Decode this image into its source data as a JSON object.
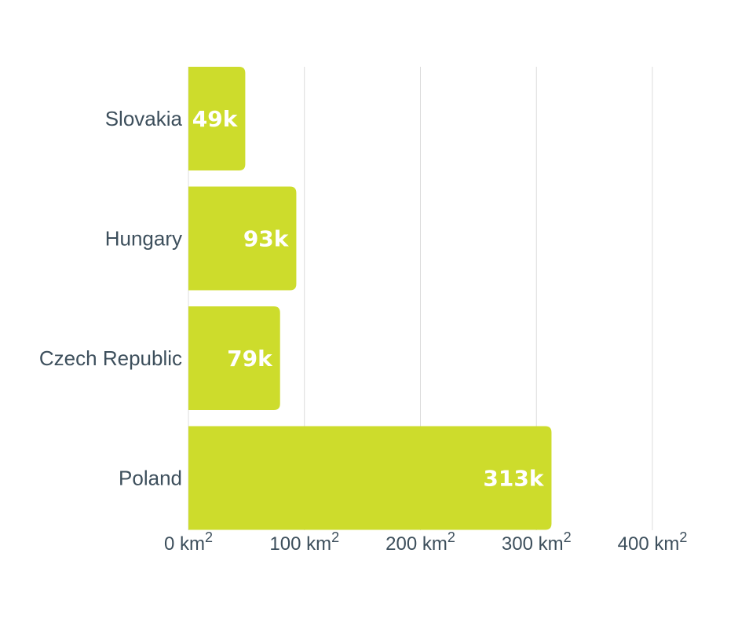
{
  "chart_data": {
    "type": "bar",
    "orientation": "horizontal",
    "categories": [
      "Slovakia",
      "Hungary",
      "Czech Republic",
      "Poland"
    ],
    "values": [
      49,
      93,
      79,
      313
    ],
    "value_labels": [
      "49k",
      "93k",
      "79k",
      "313k"
    ],
    "units": "thousand km²",
    "xlim": [
      0,
      400
    ],
    "x_ticks": [
      {
        "value": 0,
        "text": "0 km",
        "sup": "2"
      },
      {
        "value": 100,
        "text": "100 km",
        "sup": "2"
      },
      {
        "value": 200,
        "text": "200 km",
        "sup": "2"
      },
      {
        "value": 300,
        "text": "300 km",
        "sup": "2"
      },
      {
        "value": 400,
        "text": "400 km",
        "sup": "2"
      }
    ],
    "grid": true,
    "bar_color": "#cddc2c",
    "label_color": "#ffffff",
    "text_color": "#3d4f5c",
    "grid_color": "#dcdcdc"
  }
}
